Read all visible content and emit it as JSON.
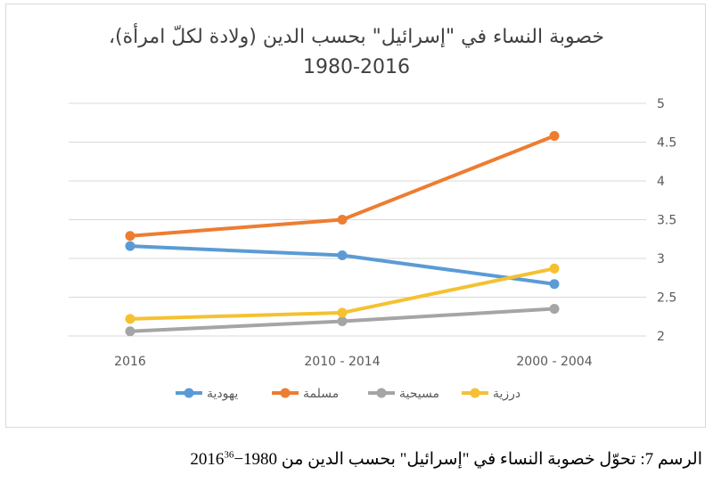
{
  "chart_data": {
    "type": "line",
    "title_line1": "خصوبة النساء في \"إسرائيل\" بحسب الدين (ولادة لكلّ امرأة)،",
    "title_line2": "1980-2016",
    "categories": [
      "2016",
      "2010 - 2014",
      "2000 - 2004"
    ],
    "ylim": [
      2,
      5
    ],
    "yticks": [
      "2",
      "2.5",
      "3",
      "3.5",
      "4",
      "4.5",
      "5"
    ],
    "grid": true,
    "legend_position": "bottom",
    "series": [
      {
        "name": "يهودية",
        "color": "#5b9bd5",
        "values": [
          3.16,
          3.04,
          2.67
        ]
      },
      {
        "name": "مسلمة",
        "color": "#ed7d31",
        "values": [
          3.29,
          3.5,
          4.58
        ]
      },
      {
        "name": "مسيحية",
        "color": "#a5a5a5",
        "values": [
          2.06,
          2.19,
          2.35
        ]
      },
      {
        "name": "درزية",
        "color": "#f5c131",
        "values": [
          2.22,
          2.3,
          2.87
        ]
      }
    ]
  },
  "caption": {
    "text": "الرسم 7: تحوّل خصوبة النساء في \"إسرائيل\" بحسب الدين من 1980−2016",
    "footnote": "36"
  }
}
